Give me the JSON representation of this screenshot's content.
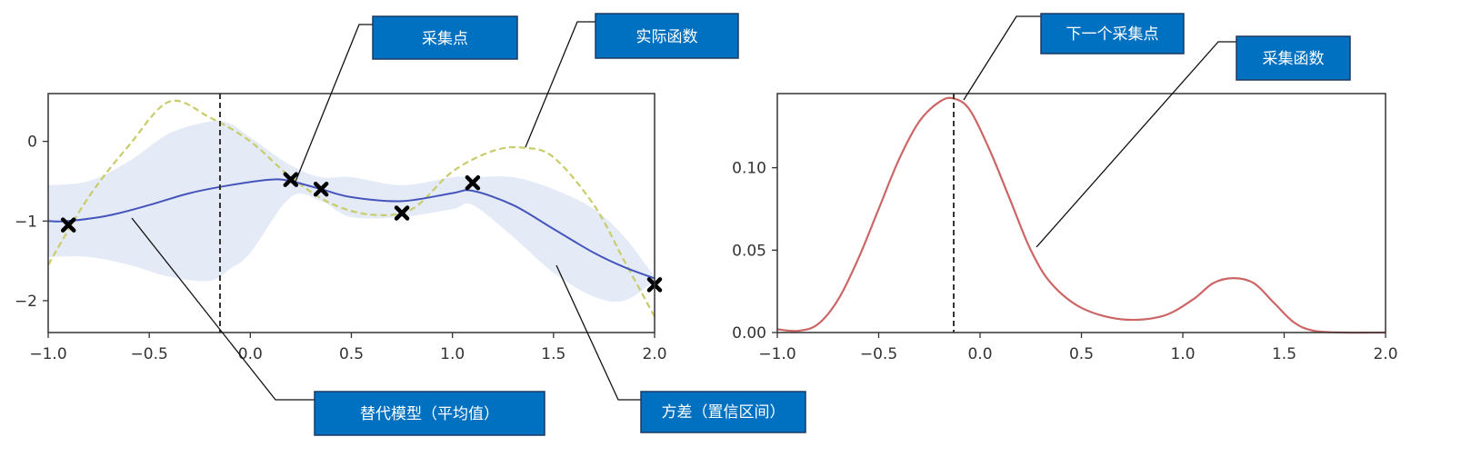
{
  "colors": {
    "callout_fill": "#0070c0",
    "callout_border": "#1f3864",
    "mean_line": "#4455bb",
    "true_function": "#c8cc6a",
    "confidence_band": "#e4ebf6",
    "acquisition_line": "#cc6666",
    "axis": "#333333",
    "marker": "#000000"
  },
  "callouts": {
    "sample_points": "采集点",
    "true_function": "实际函数",
    "surrogate_mean": "替代模型（平均值）",
    "variance": "方差（置信区间）",
    "next_sample": "下一个采集点",
    "acquisition": "采集函数"
  },
  "chart_data": [
    {
      "type": "line",
      "xlim": [
        -1.0,
        2.0
      ],
      "ylim": [
        -2.4,
        0.6
      ],
      "xticks": [
        -1.0,
        -0.5,
        0.0,
        0.5,
        1.0,
        1.5,
        2.0
      ],
      "xtick_labels": [
        "−1.0",
        "−0.5",
        "0.0",
        "0.5",
        "1.0",
        "1.5",
        "2.0"
      ],
      "yticks": [
        0,
        -1,
        -2
      ],
      "ytick_labels": [
        "0",
        "−1",
        "−2"
      ],
      "grid": false,
      "vline_x": -0.15,
      "series": [
        {
          "role": "true_function",
          "style": "dashed",
          "x": [
            -1.0,
            -0.8,
            -0.6,
            -0.4,
            -0.2,
            0.0,
            0.2,
            0.4,
            0.6,
            0.8,
            1.0,
            1.2,
            1.35,
            1.5,
            1.7,
            1.85,
            2.0
          ],
          "y": [
            -1.55,
            -0.7,
            -0.05,
            0.5,
            0.3,
            0.0,
            -0.45,
            -0.78,
            -0.92,
            -0.85,
            -0.38,
            -0.12,
            -0.08,
            -0.2,
            -0.8,
            -1.5,
            -2.2
          ]
        },
        {
          "role": "surrogate_mean",
          "style": "solid",
          "x": [
            -1.0,
            -0.9,
            -0.7,
            -0.5,
            -0.3,
            -0.1,
            0.1,
            0.2,
            0.35,
            0.5,
            0.75,
            1.0,
            1.1,
            1.3,
            1.5,
            1.7,
            1.85,
            2.0
          ],
          "y": [
            -1.0,
            -1.0,
            -0.93,
            -0.8,
            -0.65,
            -0.55,
            -0.48,
            -0.5,
            -0.6,
            -0.7,
            -0.75,
            -0.65,
            -0.62,
            -0.8,
            -1.1,
            -1.4,
            -1.58,
            -1.72
          ]
        },
        {
          "role": "confidence_band",
          "x": [
            -1.0,
            -0.8,
            -0.6,
            -0.4,
            -0.2,
            -0.1,
            0.0,
            0.2,
            0.35,
            0.5,
            0.75,
            1.0,
            1.1,
            1.3,
            1.5,
            1.7,
            1.85,
            2.0
          ],
          "upper": [
            -0.55,
            -0.5,
            -0.25,
            0.1,
            0.25,
            0.22,
            0.05,
            -0.3,
            -0.45,
            -0.45,
            -0.55,
            -0.45,
            -0.45,
            -0.45,
            -0.6,
            -0.85,
            -1.2,
            -1.7
          ],
          "lower": [
            -1.45,
            -1.45,
            -1.55,
            -1.7,
            -1.75,
            -1.6,
            -1.4,
            -0.7,
            -0.75,
            -0.95,
            -0.95,
            -0.85,
            -0.8,
            -1.2,
            -1.65,
            -1.95,
            -2.0,
            -1.75
          ]
        }
      ],
      "points": [
        {
          "x": -0.9,
          "y": -1.05
        },
        {
          "x": 0.2,
          "y": -0.48
        },
        {
          "x": 0.35,
          "y": -0.6
        },
        {
          "x": 0.75,
          "y": -0.9
        },
        {
          "x": 1.1,
          "y": -0.52
        },
        {
          "x": 2.0,
          "y": -1.8
        }
      ]
    },
    {
      "type": "line",
      "xlim": [
        -1.0,
        2.0
      ],
      "ylim": [
        0.0,
        0.145
      ],
      "xticks": [
        -1.0,
        -0.5,
        0.0,
        0.5,
        1.0,
        1.5,
        2.0
      ],
      "xtick_labels": [
        "−1.0",
        "−0.5",
        "0.0",
        "0.5",
        "1.0",
        "1.5",
        "2.0"
      ],
      "yticks": [
        0.0,
        0.05,
        0.1
      ],
      "ytick_labels": [
        "0.00",
        "0.05",
        "0.10"
      ],
      "grid": false,
      "vline_x": -0.13,
      "series": [
        {
          "role": "acquisition",
          "style": "solid",
          "x": [
            -1.0,
            -0.9,
            -0.8,
            -0.7,
            -0.6,
            -0.5,
            -0.4,
            -0.3,
            -0.2,
            -0.13,
            -0.05,
            0.05,
            0.15,
            0.25,
            0.35,
            0.5,
            0.7,
            0.9,
            1.05,
            1.15,
            1.25,
            1.35,
            1.45,
            1.55,
            1.65,
            1.8,
            2.0
          ],
          "y": [
            0.002,
            0.001,
            0.005,
            0.02,
            0.045,
            0.075,
            0.105,
            0.128,
            0.14,
            0.142,
            0.135,
            0.11,
            0.08,
            0.05,
            0.03,
            0.015,
            0.008,
            0.01,
            0.02,
            0.03,
            0.033,
            0.03,
            0.018,
            0.006,
            0.001,
            0.0,
            0.0
          ]
        }
      ]
    }
  ]
}
